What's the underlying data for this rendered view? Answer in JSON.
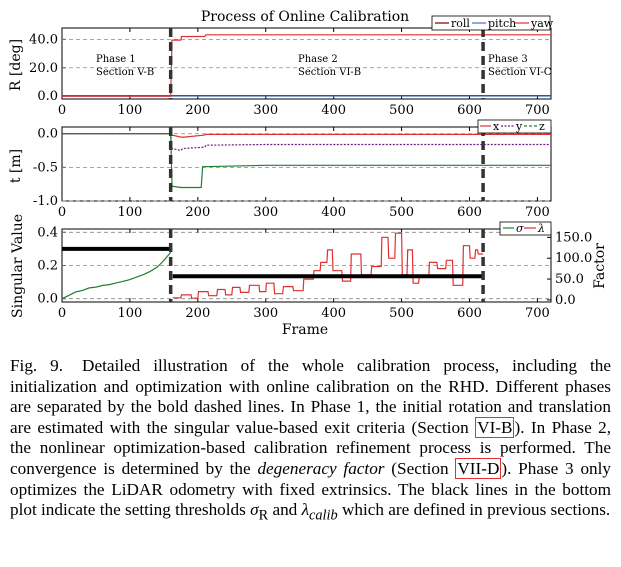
{
  "chart_data": [
    {
      "type": "line",
      "title": "Process of Online Calibration",
      "xlabel": "",
      "ylabel": "R [deg]",
      "xlim": [
        0,
        720
      ],
      "ylim": [
        -2,
        48
      ],
      "xticks": [
        0,
        100,
        200,
        300,
        400,
        500,
        600,
        700
      ],
      "yticks": [
        0.0,
        20.0,
        40.0
      ],
      "ytick_labels": [
        "0.0",
        "20.0",
        "40.0"
      ],
      "legend": [
        "roll",
        "pitch",
        "yaw"
      ],
      "legend_position": "top-right",
      "series": [
        {
          "name": "roll",
          "color": "#7a0000",
          "x": [
            0,
            160,
            161,
            720
          ],
          "y": [
            0.3,
            0.3,
            0.4,
            0.4
          ]
        },
        {
          "name": "pitch",
          "color": "#4a6fc0",
          "x": [
            0,
            160,
            161,
            720
          ],
          "y": [
            0.0,
            0.0,
            0.1,
            0.1
          ]
        },
        {
          "name": "yaw",
          "color": "#e03030",
          "x": [
            0,
            160,
            162,
            175,
            176,
            210,
            212,
            720
          ],
          "y": [
            0.0,
            0.0,
            39.5,
            39.5,
            42.0,
            42.0,
            43.2,
            43.2
          ]
        }
      ]
    },
    {
      "type": "line",
      "xlabel": "",
      "ylabel": "t [m]",
      "xlim": [
        0,
        720
      ],
      "ylim": [
        -1.0,
        0.1
      ],
      "xticks": [
        0,
        100,
        200,
        300,
        400,
        500,
        600,
        700
      ],
      "yticks": [
        0.0,
        -0.5,
        -1.0
      ],
      "ytick_labels": [
        "0.0",
        "-0.5",
        "-1.0"
      ],
      "legend": [
        "x",
        "y",
        "z"
      ],
      "legend_position": "top-right",
      "series": [
        {
          "name": "x",
          "color": "#e03030",
          "x": [
            0,
            160,
            162,
            175,
            180,
            210,
            212,
            720
          ],
          "y": [
            0.0,
            0.0,
            -0.02,
            -0.05,
            -0.05,
            -0.02,
            -0.01,
            -0.01
          ]
        },
        {
          "name": "y",
          "color": "#6a2080",
          "x": [
            0,
            160,
            162,
            175,
            178,
            210,
            212,
            300,
            720
          ],
          "y": [
            0.0,
            0.0,
            -0.22,
            -0.25,
            -0.22,
            -0.2,
            -0.17,
            -0.16,
            -0.16
          ]
        },
        {
          "name": "z",
          "color": "#1e8030",
          "x": [
            0,
            160,
            162,
            175,
            176,
            205,
            207,
            300,
            720
          ],
          "y": [
            0.0,
            0.0,
            -0.78,
            -0.8,
            -0.8,
            -0.8,
            -0.49,
            -0.47,
            -0.47
          ]
        }
      ]
    },
    {
      "type": "line",
      "xlabel": "Frame",
      "ylabel": "Singular Value",
      "ylabel_right": "Factor",
      "xlim": [
        0,
        720
      ],
      "ylim": [
        -0.02,
        0.42
      ],
      "ylim_right": [
        -5,
        170
      ],
      "xticks": [
        0,
        100,
        200,
        300,
        400,
        500,
        600,
        700
      ],
      "yticks": [
        0.0,
        0.2,
        0.4
      ],
      "ytick_labels": [
        "0.0",
        "0.2",
        "0.4"
      ],
      "yticks_right": [
        0.0,
        50.0,
        100.0,
        150.0
      ],
      "ytick_labels_right": [
        "0.0",
        "50.0",
        "100.0",
        "150.0"
      ],
      "legend": [
        "σ",
        "λ"
      ],
      "legend_position": "top-right",
      "thresholds": [
        {
          "name": "σR",
          "x": [
            0,
            160
          ],
          "y": 0.3
        },
        {
          "name": "λcalib",
          "x": [
            163,
            620
          ],
          "y": 0.135
        }
      ],
      "series": [
        {
          "name": "σ",
          "axis": "left",
          "color": "#1e8030",
          "x": [
            0,
            10,
            20,
            30,
            40,
            50,
            60,
            70,
            80,
            90,
            100,
            110,
            120,
            130,
            140,
            150,
            160
          ],
          "y": [
            0.0,
            0.02,
            0.04,
            0.05,
            0.065,
            0.07,
            0.08,
            0.085,
            0.095,
            0.105,
            0.115,
            0.13,
            0.145,
            0.165,
            0.19,
            0.23,
            0.28
          ]
        },
        {
          "name": "λ",
          "axis": "right",
          "color": "#e03030",
          "x": [
            163,
            175,
            176,
            190,
            191,
            200,
            201,
            215,
            216,
            228,
            229,
            240,
            241,
            250,
            251,
            262,
            263,
            275,
            276,
            290,
            291,
            300,
            301,
            312,
            313,
            325,
            326,
            340,
            341,
            355,
            356,
            370,
            371,
            380,
            381,
            390,
            391,
            398,
            399,
            412,
            413,
            425,
            426,
            440,
            441,
            455,
            456,
            470,
            471,
            480,
            481,
            490,
            491,
            500,
            501,
            508,
            509,
            516,
            517,
            525,
            526,
            540,
            541,
            552,
            553,
            565,
            566,
            575,
            576,
            590,
            591,
            600,
            601,
            608,
            609,
            612,
            613,
            620
          ],
          "y": [
            5,
            5,
            12,
            12,
            4,
            4,
            20,
            20,
            10,
            10,
            25,
            25,
            12,
            12,
            30,
            30,
            18,
            18,
            35,
            35,
            20,
            20,
            40,
            40,
            15,
            15,
            32,
            32,
            22,
            22,
            50,
            50,
            70,
            70,
            90,
            90,
            120,
            120,
            70,
            70,
            45,
            45,
            110,
            110,
            60,
            60,
            80,
            80,
            150,
            150,
            100,
            100,
            160,
            160,
            60,
            60,
            120,
            120,
            40,
            40,
            55,
            55,
            90,
            90,
            75,
            75,
            95,
            95,
            35,
            35,
            130,
            130,
            100,
            100,
            120,
            120,
            110,
            110
          ]
        }
      ]
    }
  ],
  "phases": [
    {
      "line1": "Phase 1",
      "line2": "Section V-B"
    },
    {
      "line1": "Phase 2",
      "line2": "Section VI-B"
    },
    {
      "line1": "Phase 3",
      "line2": "Section VI-C"
    }
  ],
  "phase_boundaries": [
    160,
    620
  ],
  "caption": {
    "fig_label": "Fig. 9.",
    "s1": "Detailed illustration of the whole calibration process, including the initialization and optimization with online calibration on the RHD. Different phases are separated by the bold dashed lines. In Phase 1, the initial rotation and translation are estimated with the singular value-based exit criteria (Section ",
    "ref1": "VI-B",
    "s2": "). In Phase 2, the nonlinear optimization-based calibration refinement process is performed. The convergence is determined by the ",
    "em": "degeneracy factor",
    "s3": " (Section ",
    "ref2": "VII-D",
    "s4": "). Phase 3 only optimizes the LiDAR odometry with fixed extrinsics. The black lines in the bottom plot indicate the setting thresholds ",
    "sym1": "σ",
    "sym1_sub": "R",
    "s5": " and ",
    "sym2": "λ",
    "sym2_sub": "calib",
    "s6": " which are defined in previous sections."
  }
}
